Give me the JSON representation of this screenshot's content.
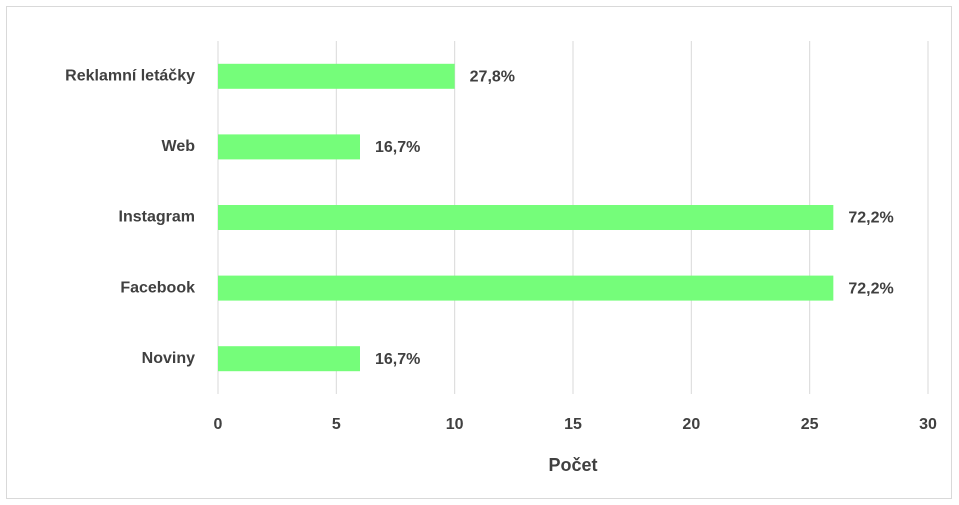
{
  "chart_data": {
    "type": "barh",
    "x_label": "Počet",
    "categories": [
      "Reklamní letáčky",
      "Web",
      "Instagram",
      "Facebook",
      "Noviny"
    ],
    "values": [
      10,
      6,
      26,
      26,
      6
    ],
    "value_labels": [
      "27,8%",
      "16,7%",
      "72,2%",
      "72,2%",
      "16,7%"
    ],
    "color": "#75fd7a",
    "xlim": [
      0,
      30
    ],
    "xticks": [
      0,
      5,
      10,
      15,
      20,
      25,
      30
    ],
    "grid": true
  }
}
